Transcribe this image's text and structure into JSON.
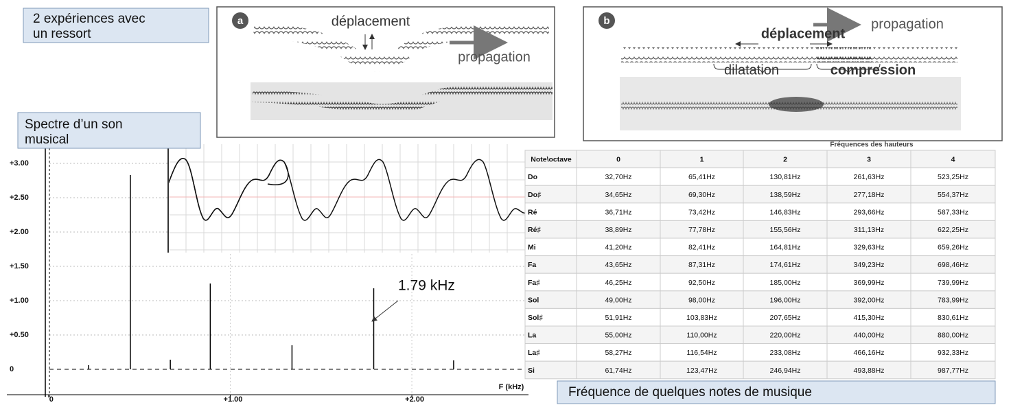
{
  "boxes": {
    "experiments": [
      "2 expériences avec",
      "un ressort"
    ],
    "spectrum": [
      "Spectre d’un son",
      "musical"
    ],
    "notes": "Fréquence de quelques notes de musique"
  },
  "figure_a": {
    "tag": "a",
    "displacement": "déplacement",
    "propagation": "propagation"
  },
  "figure_b": {
    "tag": "b",
    "propagation": "propagation",
    "displacement": "déplacement",
    "dilatation": "dilatation",
    "compression": "compression"
  },
  "chart_data": {
    "type": "stem",
    "x_label": "F (kHz)",
    "annotation": "1.79 kHz",
    "x": [
      0.22,
      0.45,
      0.67,
      0.89,
      1.34,
      1.79,
      2.23
    ],
    "values": [
      0.06,
      2.83,
      0.14,
      1.25,
      0.35,
      1.18,
      0.13
    ],
    "color": "#000000",
    "xlim": [
      -0.23,
      2.68
    ],
    "ylim": [
      -0.37,
      3.28
    ],
    "xticks": [
      0,
      {
        "value": 1,
        "label": "+1.00"
      },
      {
        "value": 2,
        "label": "+2.00"
      }
    ],
    "yticks": [
      0,
      {
        "value": 0.5,
        "label": "+0.50"
      },
      {
        "value": 1,
        "label": "+1.00"
      },
      {
        "value": 1.5,
        "label": "+1.50"
      },
      {
        "value": 2,
        "label": "+2.00"
      },
      {
        "value": 2.5,
        "label": "+2.50"
      },
      {
        "value": 3,
        "label": "+3.00"
      }
    ],
    "grid": true
  },
  "table": {
    "title": "Fréquences des hauteurs",
    "header": [
      "Note\\octave",
      "0",
      "1",
      "2",
      "3",
      "4"
    ],
    "rows": [
      [
        "Do",
        "32,70Hz",
        "65,41Hz",
        "130,81Hz",
        "261,63Hz",
        "523,25Hz"
      ],
      [
        "Do♯",
        "34,65Hz",
        "69,30Hz",
        "138,59Hz",
        "277,18Hz",
        "554,37Hz"
      ],
      [
        "Ré",
        "36,71Hz",
        "73,42Hz",
        "146,83Hz",
        "293,66Hz",
        "587,33Hz"
      ],
      [
        "Ré♯",
        "38,89Hz",
        "77,78Hz",
        "155,56Hz",
        "311,13Hz",
        "622,25Hz"
      ],
      [
        "Mi",
        "41,20Hz",
        "82,41Hz",
        "164,81Hz",
        "329,63Hz",
        "659,26Hz"
      ],
      [
        "Fa",
        "43,65Hz",
        "87,31Hz",
        "174,61Hz",
        "349,23Hz",
        "698,46Hz"
      ],
      [
        "Fa♯",
        "46,25Hz",
        "92,50Hz",
        "185,00Hz",
        "369,99Hz",
        "739,99Hz"
      ],
      [
        "Sol",
        "49,00Hz",
        "98,00Hz",
        "196,00Hz",
        "392,00Hz",
        "783,99Hz"
      ],
      [
        "Sol♯",
        "51,91Hz",
        "103,83Hz",
        "207,65Hz",
        "415,30Hz",
        "830,61Hz"
      ],
      [
        "La",
        "55,00Hz",
        "110,00Hz",
        "220,00Hz",
        "440,00Hz",
        "880,00Hz"
      ],
      [
        "La♯",
        "58,27Hz",
        "116,54Hz",
        "233,08Hz",
        "466,16Hz",
        "932,33Hz"
      ],
      [
        "Si",
        "61,74Hz",
        "123,47Hz",
        "246,94Hz",
        "493,88Hz",
        "987,77Hz"
      ]
    ]
  }
}
